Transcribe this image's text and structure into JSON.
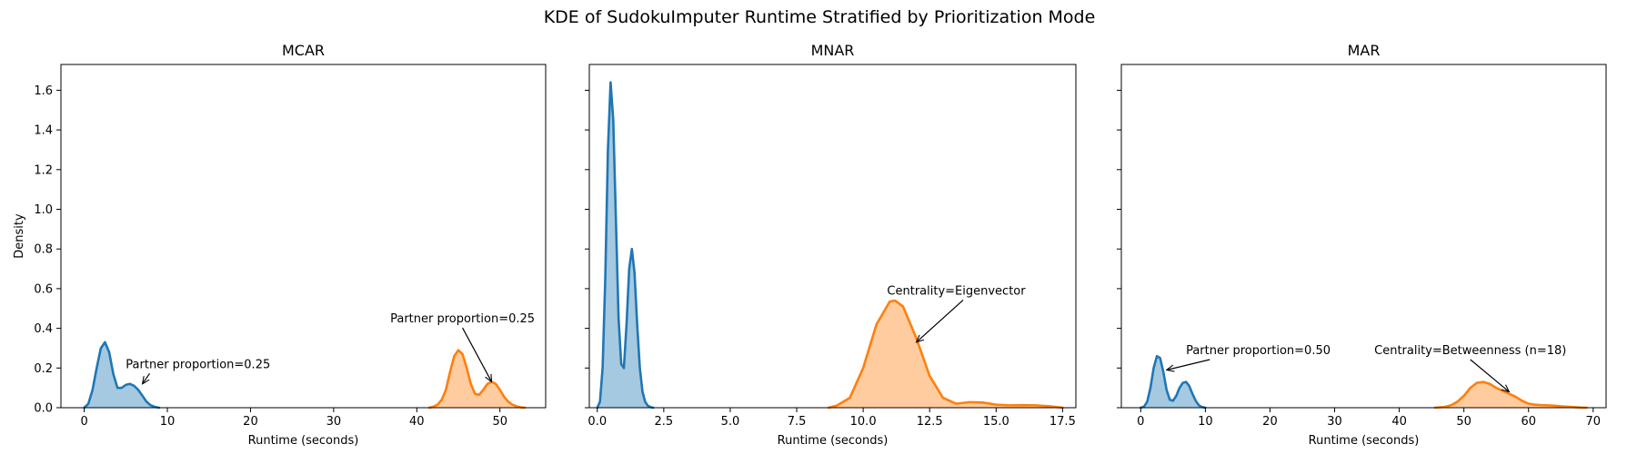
{
  "chart_data": {
    "type": "area",
    "title": "KDE of SudokuImputer Runtime Stratified by Prioritization Mode",
    "shared_y": true,
    "ylabel": "Density",
    "ylim": [
      0,
      1.73
    ],
    "yticks": [
      0.0,
      0.2,
      0.4,
      0.6,
      0.8,
      1.0,
      1.2,
      1.4,
      1.6
    ],
    "ytick_labels": [
      "0.0",
      "0.2",
      "0.4",
      "0.6",
      "0.8",
      "1.0",
      "1.2",
      "1.4",
      "1.6"
    ],
    "grid": false,
    "colors": {
      "series_a": "#1f77b4",
      "series_b": "#ff7f0e"
    },
    "panels": [
      {
        "title": "MCAR",
        "xlabel": "Runtime (seconds)",
        "xlim": [
          -2.8,
          55.5
        ],
        "xticks": [
          0,
          10,
          20,
          30,
          40,
          50
        ],
        "xtick_labels": [
          "0",
          "10",
          "20",
          "30",
          "40",
          "50"
        ],
        "series": [
          {
            "color": "#1f77b4",
            "x": [
              0,
              0.5,
              1,
              1.5,
              2,
              2.5,
              3,
              3.5,
              4,
              4.5,
              5,
              5.5,
              6,
              6.5,
              7,
              7.5,
              8,
              8.5,
              9
            ],
            "y": [
              0.0,
              0.02,
              0.09,
              0.2,
              0.3,
              0.33,
              0.28,
              0.17,
              0.1,
              0.1,
              0.115,
              0.12,
              0.11,
              0.09,
              0.06,
              0.03,
              0.012,
              0.004,
              0.0
            ]
          },
          {
            "color": "#ff7f0e",
            "x": [
              41.5,
              42,
              42.5,
              43,
              43.5,
              44,
              44.5,
              45,
              45.5,
              46,
              46.5,
              47,
              47.5,
              48,
              48.5,
              49,
              49.5,
              50,
              50.5,
              51,
              51.5,
              52,
              52.5,
              53
            ],
            "y": [
              0.0,
              0.005,
              0.015,
              0.04,
              0.09,
              0.18,
              0.26,
              0.29,
              0.27,
              0.2,
              0.12,
              0.07,
              0.065,
              0.09,
              0.12,
              0.13,
              0.12,
              0.09,
              0.055,
              0.03,
              0.015,
              0.007,
              0.002,
              0.0
            ]
          }
        ],
        "annotations": [
          {
            "text": "Partner proportion=0.25",
            "x": 7,
            "y": 0.12,
            "xytext": [
              5,
              0.2
            ],
            "ha": "left"
          },
          {
            "text": "Partner proportion=0.25",
            "x": 49,
            "y": 0.13,
            "xytext": [
              45.5,
              0.43
            ],
            "ha": "center"
          }
        ]
      },
      {
        "title": "MNAR",
        "xlabel": "Runtime (seconds)",
        "xlim": [
          -0.3,
          18.0
        ],
        "xticks": [
          0.0,
          2.5,
          5.0,
          7.5,
          10.0,
          12.5,
          15.0,
          17.5
        ],
        "xtick_labels": [
          "0.0",
          "2.5",
          "5.0",
          "7.5",
          "10.0",
          "12.5",
          "15.0",
          "17.5"
        ],
        "series": [
          {
            "color": "#1f77b4",
            "x": [
              0.0,
              0.1,
              0.2,
              0.3,
              0.4,
              0.5,
              0.6,
              0.7,
              0.8,
              0.9,
              1.0,
              1.1,
              1.2,
              1.3,
              1.4,
              1.5,
              1.6,
              1.7,
              1.8,
              1.9,
              2.0,
              2.1
            ],
            "y": [
              0.0,
              0.03,
              0.2,
              0.65,
              1.3,
              1.64,
              1.45,
              0.95,
              0.45,
              0.22,
              0.2,
              0.42,
              0.7,
              0.8,
              0.68,
              0.42,
              0.2,
              0.08,
              0.03,
              0.01,
              0.003,
              0.0
            ]
          },
          {
            "color": "#ff7f0e",
            "x": [
              8.7,
              9.0,
              9.5,
              10.0,
              10.5,
              11.0,
              11.2,
              11.5,
              12.0,
              12.5,
              13.0,
              13.5,
              14.0,
              14.5,
              15.0,
              15.5,
              16.0,
              16.5,
              17.0,
              17.5
            ],
            "y": [
              0.0,
              0.01,
              0.05,
              0.2,
              0.42,
              0.535,
              0.54,
              0.51,
              0.35,
              0.16,
              0.05,
              0.02,
              0.028,
              0.026,
              0.015,
              0.012,
              0.013,
              0.012,
              0.007,
              0.0
            ]
          }
        ],
        "annotations": [
          {
            "text": "Centrality=Eigenvector",
            "x": 12,
            "y": 0.33,
            "xytext": [
              10.9,
              0.57
            ],
            "ha": "left"
          }
        ]
      },
      {
        "title": "MAR",
        "xlabel": "Runtime (seconds)",
        "xlim": [
          -3,
          72
        ],
        "xticks": [
          0,
          10,
          20,
          30,
          40,
          50,
          60,
          70
        ],
        "xtick_labels": [
          "0",
          "10",
          "20",
          "30",
          "40",
          "50",
          "60",
          "70"
        ],
        "series": [
          {
            "color": "#1f77b4",
            "x": [
              0,
              0.5,
              1,
              1.5,
              2,
              2.5,
              3,
              3.5,
              4,
              4.5,
              5,
              5.5,
              6,
              6.5,
              7,
              7.5,
              8,
              8.5,
              9,
              9.5,
              10
            ],
            "y": [
              0.0,
              0.005,
              0.03,
              0.1,
              0.2,
              0.26,
              0.25,
              0.18,
              0.09,
              0.04,
              0.035,
              0.06,
              0.1,
              0.125,
              0.13,
              0.11,
              0.07,
              0.035,
              0.012,
              0.003,
              0.0
            ]
          },
          {
            "color": "#ff7f0e",
            "x": [
              45.5,
              47,
              48,
              49,
              50,
              51,
              52,
              53,
              54,
              55,
              56,
              57,
              58,
              59,
              60,
              61,
              62,
              63,
              64,
              65,
              66,
              67,
              68,
              69
            ],
            "y": [
              0.0,
              0.004,
              0.012,
              0.03,
              0.06,
              0.1,
              0.125,
              0.13,
              0.12,
              0.1,
              0.085,
              0.07,
              0.055,
              0.035,
              0.02,
              0.015,
              0.013,
              0.012,
              0.01,
              0.007,
              0.005,
              0.003,
              0.001,
              0.0
            ]
          }
        ],
        "annotations": [
          {
            "text": "Partner proportion=0.50",
            "x": 4,
            "y": 0.19,
            "xytext": [
              7,
              0.27
            ],
            "ha": "left"
          },
          {
            "text": "Centrality=Betweenness (n=18)",
            "x": 57,
            "y": 0.08,
            "xytext": [
              51,
              0.27
            ],
            "ha": "center"
          }
        ]
      }
    ]
  }
}
